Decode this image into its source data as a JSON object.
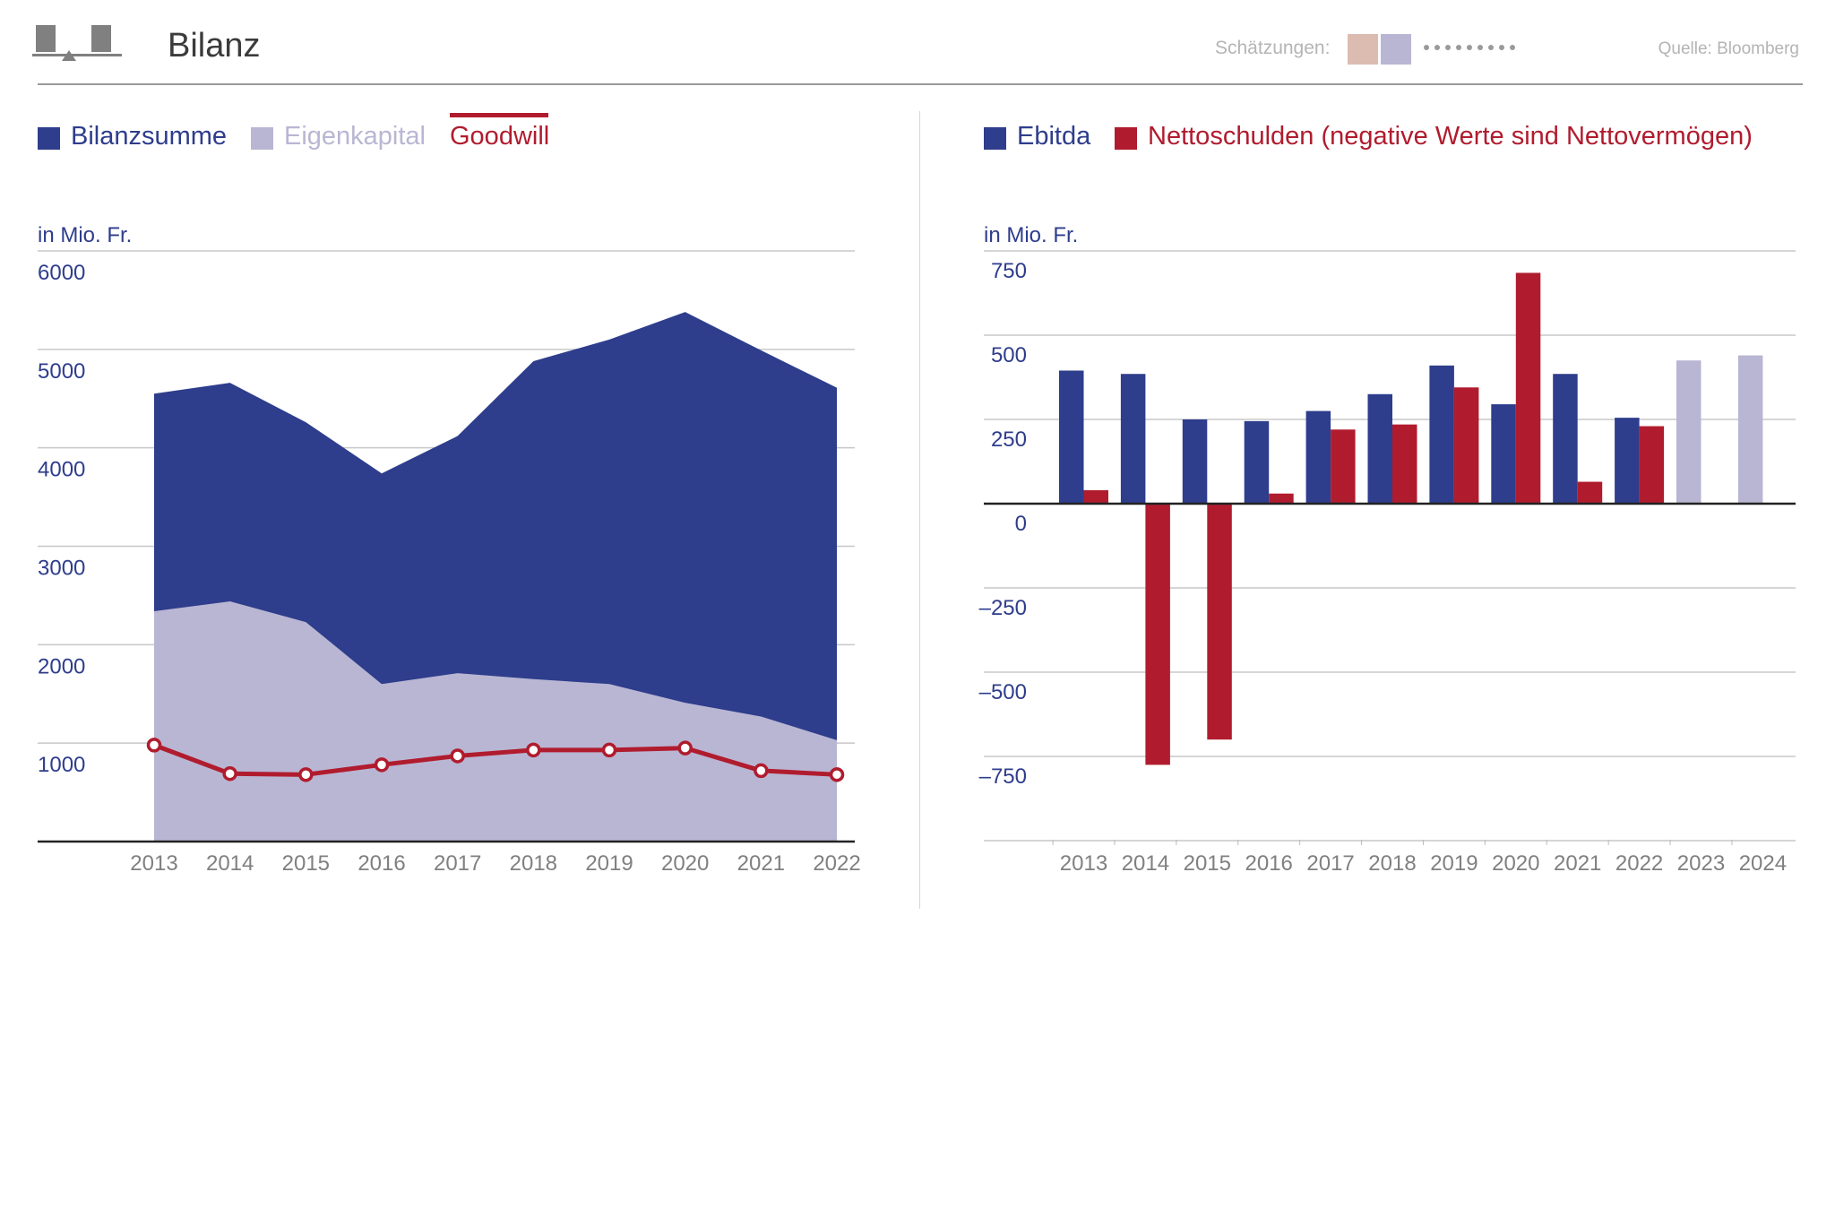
{
  "header": {
    "title": "Bilanz",
    "estimates_label": "Schätzungen:",
    "source": "Quelle: Bloomberg",
    "estimate_swatch_colors": [
      "#dcbcb0",
      "#b9b6d3"
    ],
    "logo_icon": "balance-scale-icon"
  },
  "colors": {
    "blue": "#2e3d8c",
    "lavender": "#b9b6d3",
    "red": "#b01c2e",
    "grid": "#c8c8c8",
    "axis": "#222222"
  },
  "chart_data": [
    {
      "type": "area",
      "unit": "in Mio. Fr.",
      "x": [
        "2013",
        "2014",
        "2015",
        "2016",
        "2017",
        "2018",
        "2019",
        "2020",
        "2021",
        "2022"
      ],
      "ylim": [
        0,
        6000
      ],
      "yticks": [
        "1000",
        "2000",
        "3000",
        "4000",
        "5000",
        "6000"
      ],
      "grid": true,
      "legend_position": "top-left",
      "series": [
        {
          "name": "Bilanzsumme",
          "kind": "area",
          "color": "#2e3d8c",
          "values": [
            4550,
            4660,
            4260,
            3740,
            4120,
            4880,
            5100,
            5380,
            4990,
            4610
          ]
        },
        {
          "name": "Eigenkapital",
          "kind": "area",
          "color": "#b9b6d3",
          "values": [
            2340,
            2440,
            2230,
            1600,
            1710,
            1650,
            1600,
            1410,
            1270,
            1030
          ]
        },
        {
          "name": "Goodwill",
          "kind": "line",
          "color": "#b01c2e",
          "values": [
            980,
            690,
            680,
            780,
            870,
            930,
            930,
            950,
            720,
            680
          ]
        }
      ]
    },
    {
      "type": "bar",
      "unit": "in Mio. Fr.",
      "categories": [
        "2013",
        "2014",
        "2015",
        "2016",
        "2017",
        "2018",
        "2019",
        "2020",
        "2021",
        "2022",
        "2023",
        "2024"
      ],
      "ylim": [
        -1000,
        750
      ],
      "yticks": [
        "750",
        "500",
        "250",
        "0",
        "–250",
        "–500",
        "–750"
      ],
      "grid": true,
      "legend_position": "top-left",
      "series": [
        {
          "name": "Ebitda",
          "color": "#2e3d8c",
          "values": [
            395,
            385,
            250,
            245,
            275,
            325,
            410,
            295,
            385,
            255,
            425,
            440
          ],
          "estimate_from_index": 10,
          "estimate_color": "#b9b6d3"
        },
        {
          "name": "Nettoschulden (negative Werte sind Nettovermögen)",
          "color": "#b01c2e",
          "values": [
            40,
            -775,
            -700,
            30,
            220,
            235,
            345,
            685,
            65,
            230,
            null,
            null
          ]
        }
      ]
    }
  ]
}
